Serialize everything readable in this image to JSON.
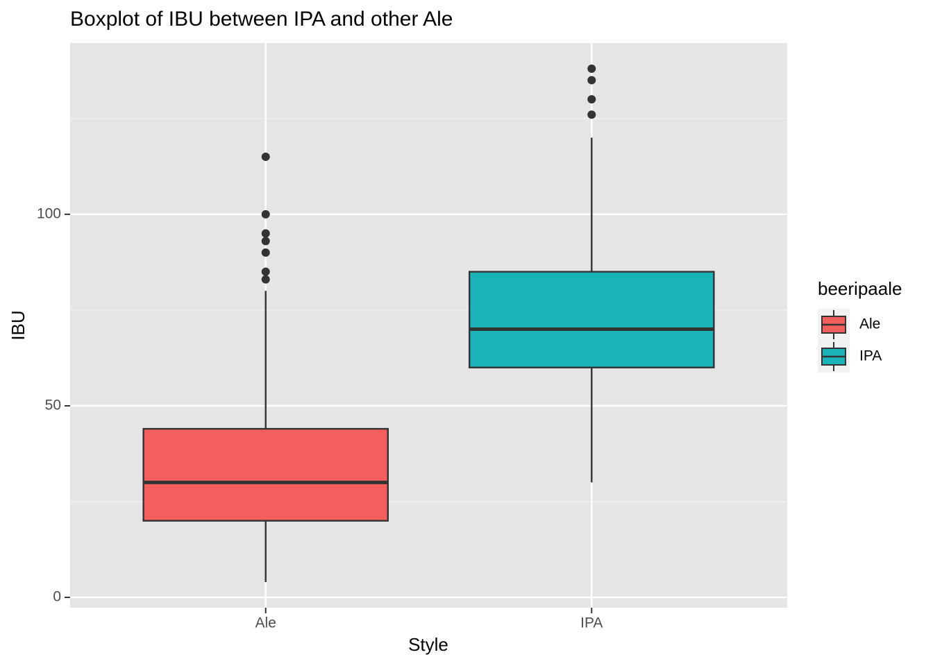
{
  "chart_data": {
    "type": "boxplot",
    "title": "Boxplot of IBU between IPA and other Ale",
    "x_label": "Style",
    "y_label": "IBU",
    "categories": [
      "Ale",
      "IPA"
    ],
    "series": [
      {
        "name": "Ale",
        "color": "#f25f5c",
        "low": 4,
        "q1": 20,
        "median": 30,
        "q3": 44,
        "high": 80,
        "outliers": [
          83,
          85,
          90,
          93,
          95,
          100,
          115
        ]
      },
      {
        "name": "IPA",
        "color": "#1ab3b8",
        "low": 30,
        "q1": 60,
        "median": 70,
        "q3": 85,
        "high": 120,
        "outliers": [
          126,
          130,
          135,
          138
        ]
      }
    ],
    "legend_title": "beeripaale",
    "legend": "right",
    "ylim": [
      -2.7,
      144.7
    ],
    "yticks": [
      0,
      50,
      100
    ],
    "yminor": [
      25,
      75,
      125
    ],
    "grid": true
  }
}
